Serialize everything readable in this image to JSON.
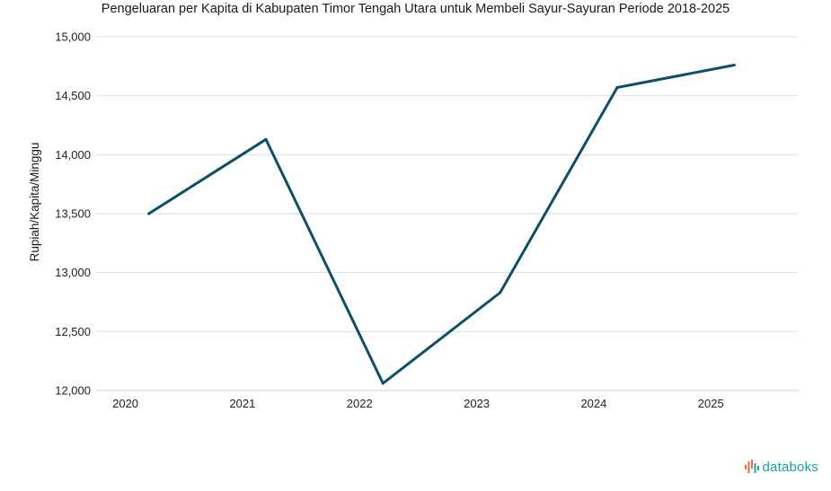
{
  "chart_data": {
    "type": "line",
    "title": "Pengeluaran per Kapita di Kabupaten Timor Tengah Utara untuk Membeli Sayur-Sayuran Periode 2018-2025",
    "xlabel": "",
    "ylabel": "Rupiah/Kapita/Minggu",
    "categories": [
      "2020",
      "2021",
      "2022",
      "2023",
      "2024",
      "2025"
    ],
    "series": [
      {
        "values": [
          13500,
          14130,
          12060,
          12830,
          14570,
          14760
        ],
        "color": "#0b5068"
      }
    ],
    "x_points": [
      2020.2,
      2021.2,
      2022.2,
      2023.2,
      2024.2,
      2025.2
    ],
    "ylim": [
      12000,
      15000
    ],
    "yticks": [
      12000,
      12500,
      13000,
      13500,
      14000,
      14500,
      15000
    ],
    "ytick_labels": [
      "12,000",
      "12,500",
      "13,000",
      "13,500",
      "14,000",
      "14,500",
      "15,000"
    ],
    "grid": true,
    "legend": "none"
  },
  "brand": {
    "name": "databoks",
    "color": "#17a2a8",
    "accent": "#f06a3d"
  }
}
